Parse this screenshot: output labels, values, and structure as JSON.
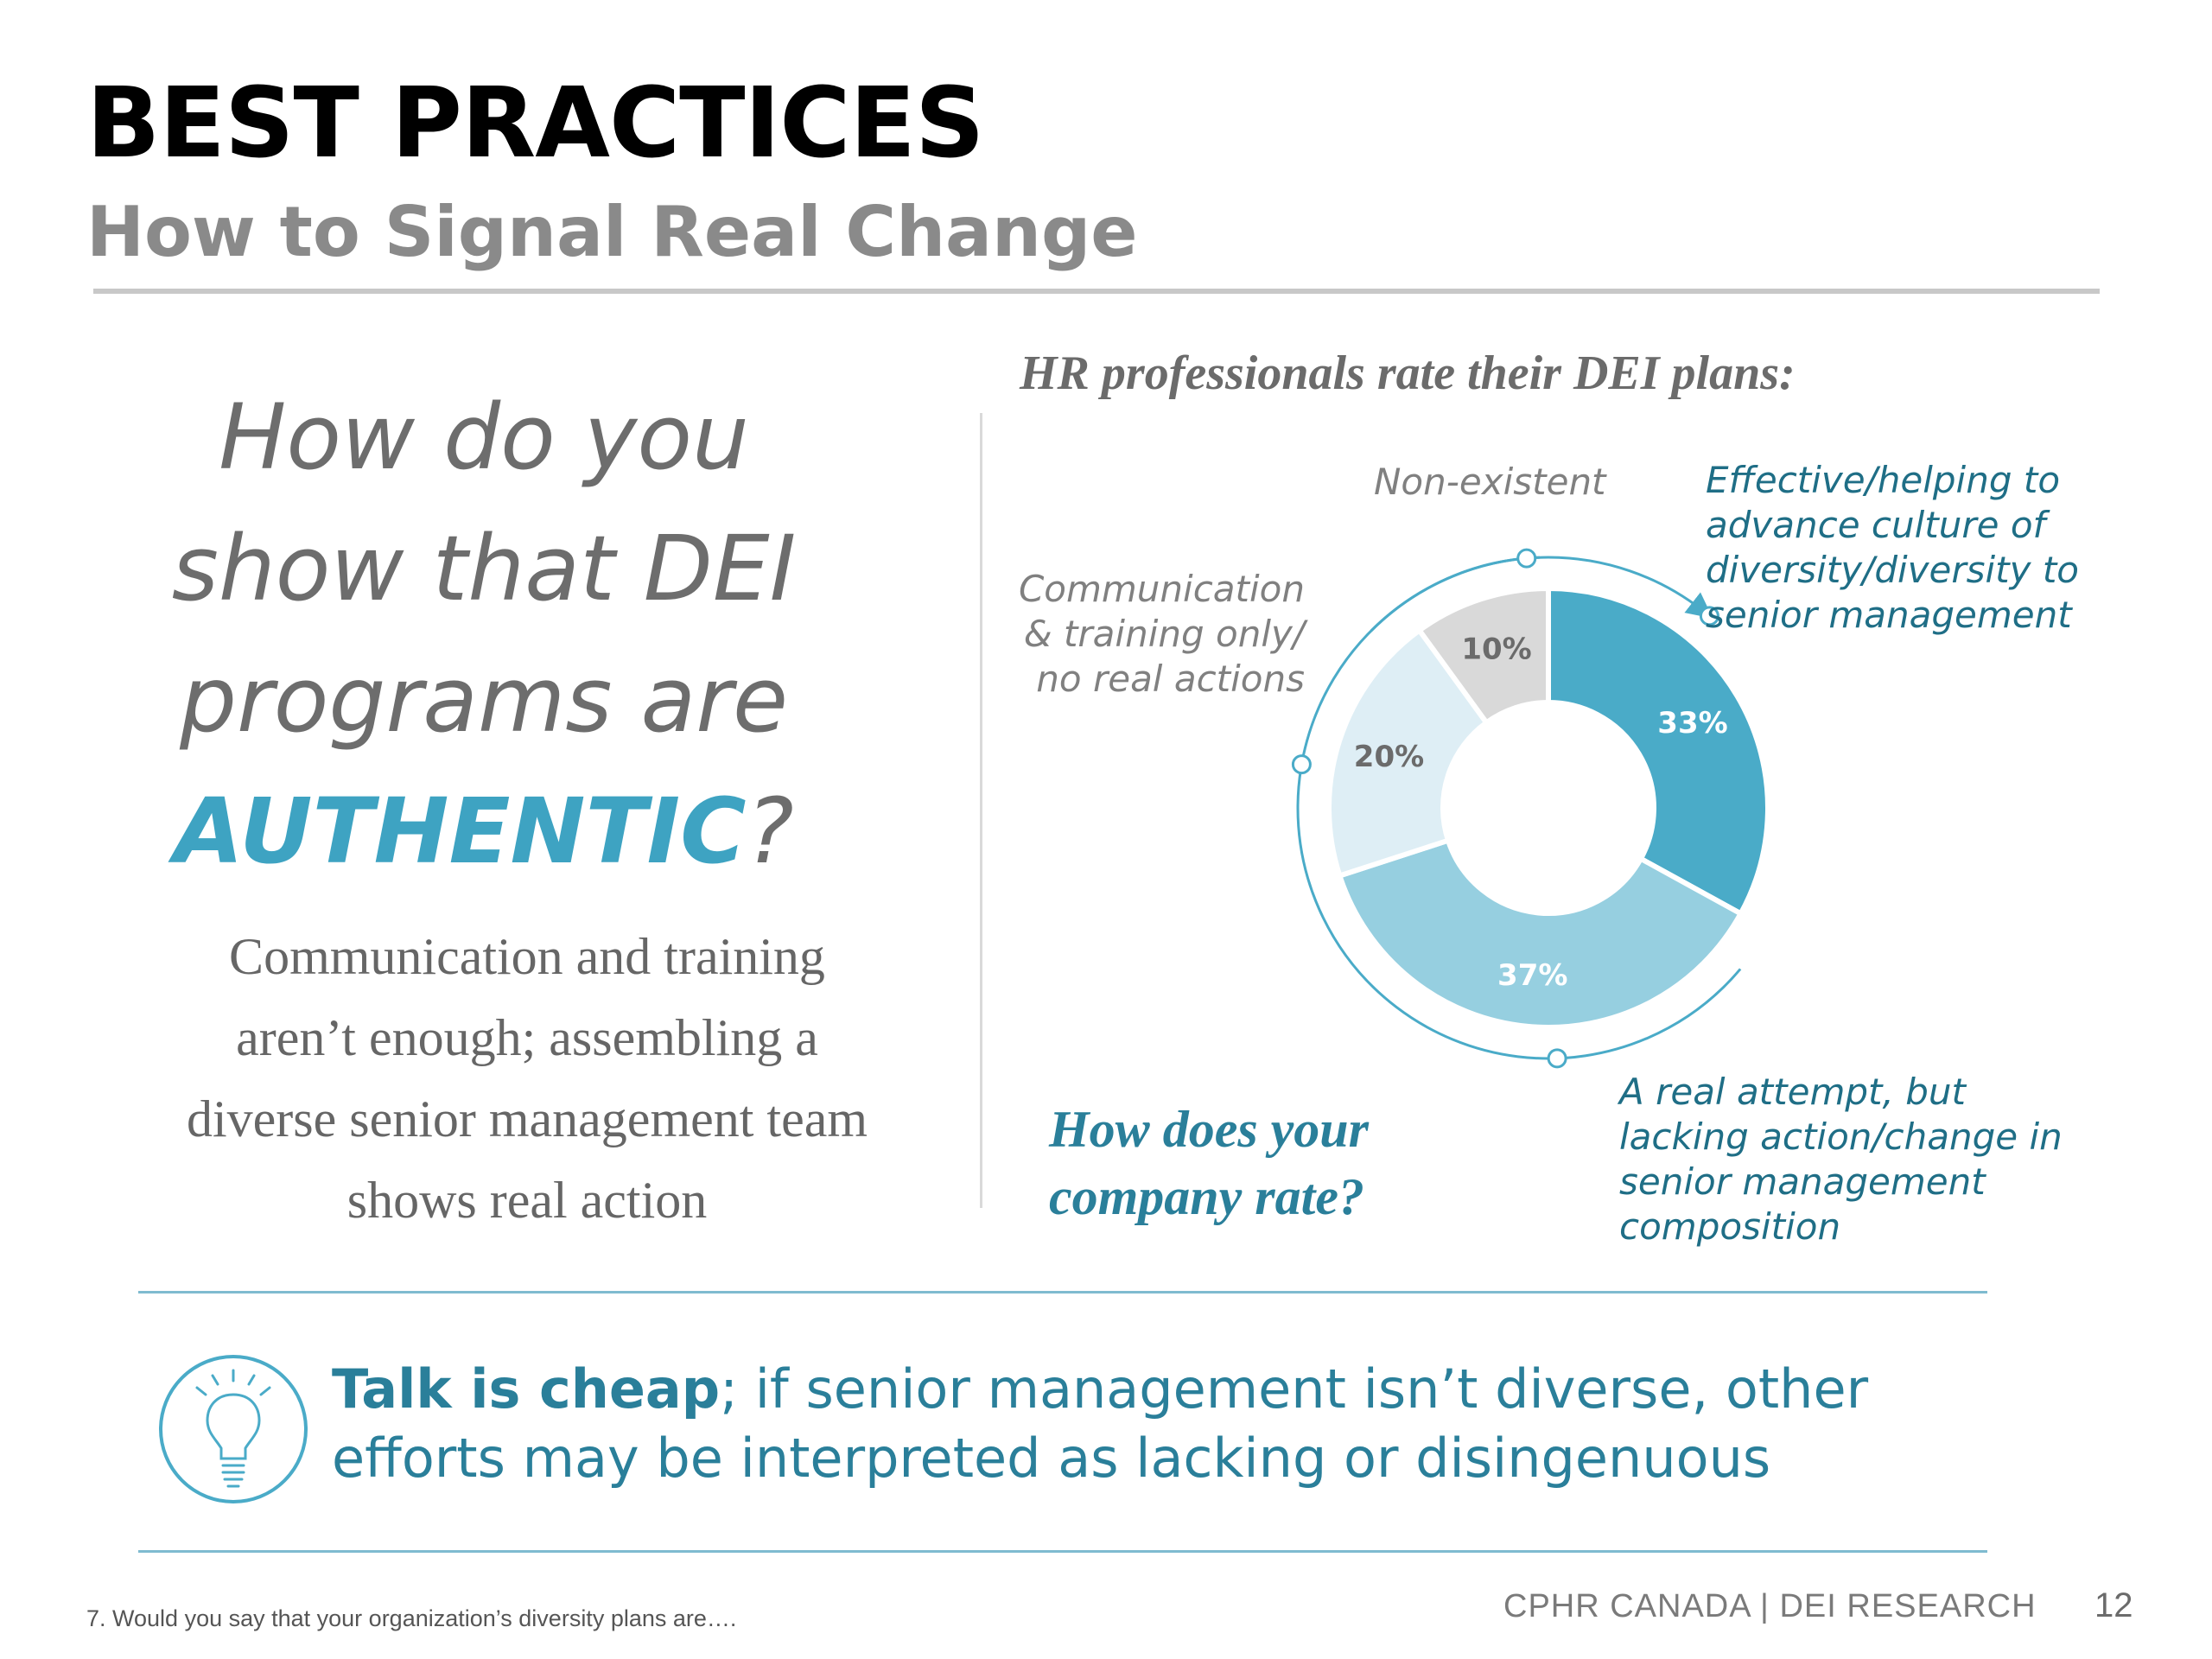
{
  "slide": {
    "title": "BEST PRACTICES",
    "subtitle": "How to Signal Real Change"
  },
  "question": {
    "line1": "How do you",
    "line2": "show that DEI",
    "line3": "programs are",
    "highlight": "AUTHENTIC",
    "qmark": "?"
  },
  "explanation": "Communication and training aren’t enough; assembling a diverse senior management team shows real action",
  "chart_data": {
    "type": "pie",
    "donut": true,
    "title": "HR professionals rate their DEI plans:",
    "slices": [
      {
        "label": "Effective/helping to advance culture of diversity/diversity to senior management",
        "value": 33,
        "value_label": "33%",
        "color": "#4aabc8"
      },
      {
        "label": "A real attempt, but lacking action/change in senior management composition",
        "value": 37,
        "value_label": "37%",
        "color": "#96cfe0"
      },
      {
        "label": "Communication & training only/ no real actions",
        "value": 20,
        "value_label": "20%",
        "color": "#deeef5"
      },
      {
        "label": "Non-existent",
        "value": 10,
        "value_label": "10%",
        "color": "#d9d9d9"
      }
    ],
    "legend": "none"
  },
  "chart_labels": {
    "nonexistent": "Non-existent",
    "communication": "Communication & training only/ no real actions",
    "effective": "Effective/helping to advance culture of diversity/diversity to senior management",
    "real_attempt": "A real attempt, but lacking action/change in senior management composition"
  },
  "call_to_action": "How does your company rate?",
  "takeaway": {
    "strong": "Talk is cheap",
    "rest": "; if senior management isn’t diverse, other efforts may be interpreted as lacking or disingenuous"
  },
  "icons": {
    "lightbulb": "lightbulb-icon"
  },
  "colors": {
    "accent": "#3ea3c2",
    "teal_text": "#2a7f9a",
    "arc": "#4aabc8"
  },
  "footer": {
    "footnote": "7. Would you say that your organization’s diversity plans are….",
    "brand": "CPHR CANADA | DEI RESEARCH",
    "page": "12"
  }
}
